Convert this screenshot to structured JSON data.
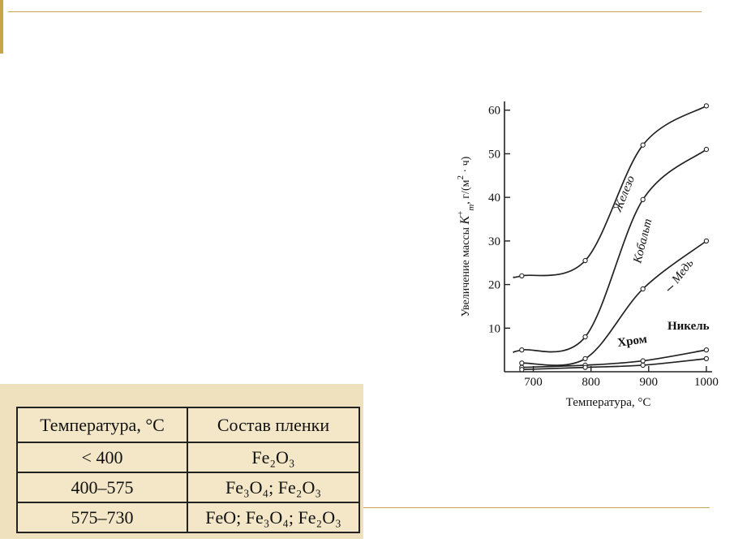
{
  "chart_data": {
    "type": "line",
    "xlabel": "Температура, °С",
    "ylabel_parts": [
      "Увеличение массы ",
      "K",
      "+",
      "m",
      ", г/(м",
      "2",
      " · ч)"
    ],
    "xlim": [
      650,
      1010
    ],
    "ylim": [
      0,
      62
    ],
    "x_ticks": [
      700,
      800,
      900,
      1000
    ],
    "y_ticks": [
      10,
      20,
      30,
      40,
      50,
      60
    ],
    "grid": false,
    "series": [
      {
        "name": "Железо",
        "x": [
          680,
          790,
          890,
          1000
        ],
        "values": [
          22,
          25.5,
          52,
          61
        ]
      },
      {
        "name": "Кобальт",
        "x": [
          680,
          790,
          890,
          1000
        ],
        "values": [
          5,
          8,
          39.5,
          51
        ]
      },
      {
        "name": "Медь",
        "x": [
          680,
          790,
          890,
          1000
        ],
        "values": [
          2,
          3,
          19,
          30
        ]
      },
      {
        "name": "Никель",
        "x": [
          680,
          790,
          890,
          1000
        ],
        "values": [
          1,
          1.5,
          2.5,
          5
        ]
      },
      {
        "name": "Хром",
        "x": [
          680,
          790,
          890,
          1000
        ],
        "values": [
          0.5,
          1,
          1.5,
          3
        ]
      }
    ],
    "curve_labels": [
      "Железо",
      "Кобальт",
      "Медь",
      "Никель",
      "Хром"
    ]
  },
  "table": {
    "headers": [
      "Температура, °С",
      "Состав пленки"
    ],
    "rows": [
      [
        "< 400",
        "Fe₂O₃"
      ],
      [
        "400–575",
        "Fe₃O₄; Fe₂O₃"
      ],
      [
        "575–730",
        "FeO; Fe₃O₄; Fe₂O₃"
      ]
    ]
  },
  "colors": {
    "accent": "#c8a54a",
    "table_bg": "#efe1bd"
  }
}
